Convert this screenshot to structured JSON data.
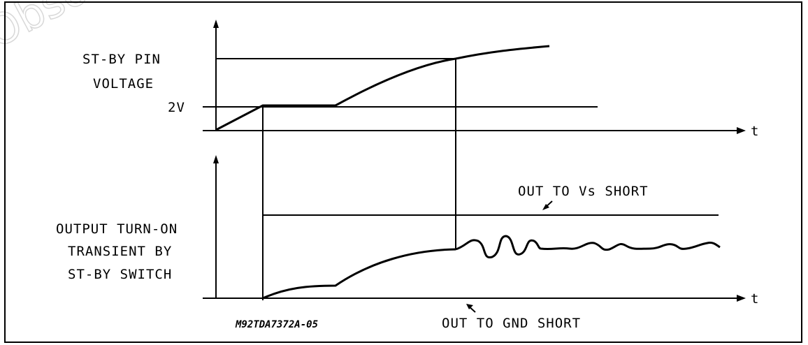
{
  "watermark": "Obso",
  "top_plot": {
    "ylabel_line1": "ST-BY PIN",
    "ylabel_line2": "VOLTAGE",
    "tick_label": "2V",
    "axis_label": "t"
  },
  "bottom_plot": {
    "ylabel_line1": "OUTPUT TURN-ON",
    "ylabel_line2": "TRANSIENT BY",
    "ylabel_line3": "ST-BY SWITCH",
    "axis_label": "t",
    "annotation_vs": "OUT TO Vs SHORT",
    "annotation_gnd": "OUT TO GND SHORT"
  },
  "figure_code": "M92TDA7372A-05",
  "colors": {
    "line": "#000000",
    "background": "#ffffff",
    "watermark": "#d8d8d8"
  }
}
